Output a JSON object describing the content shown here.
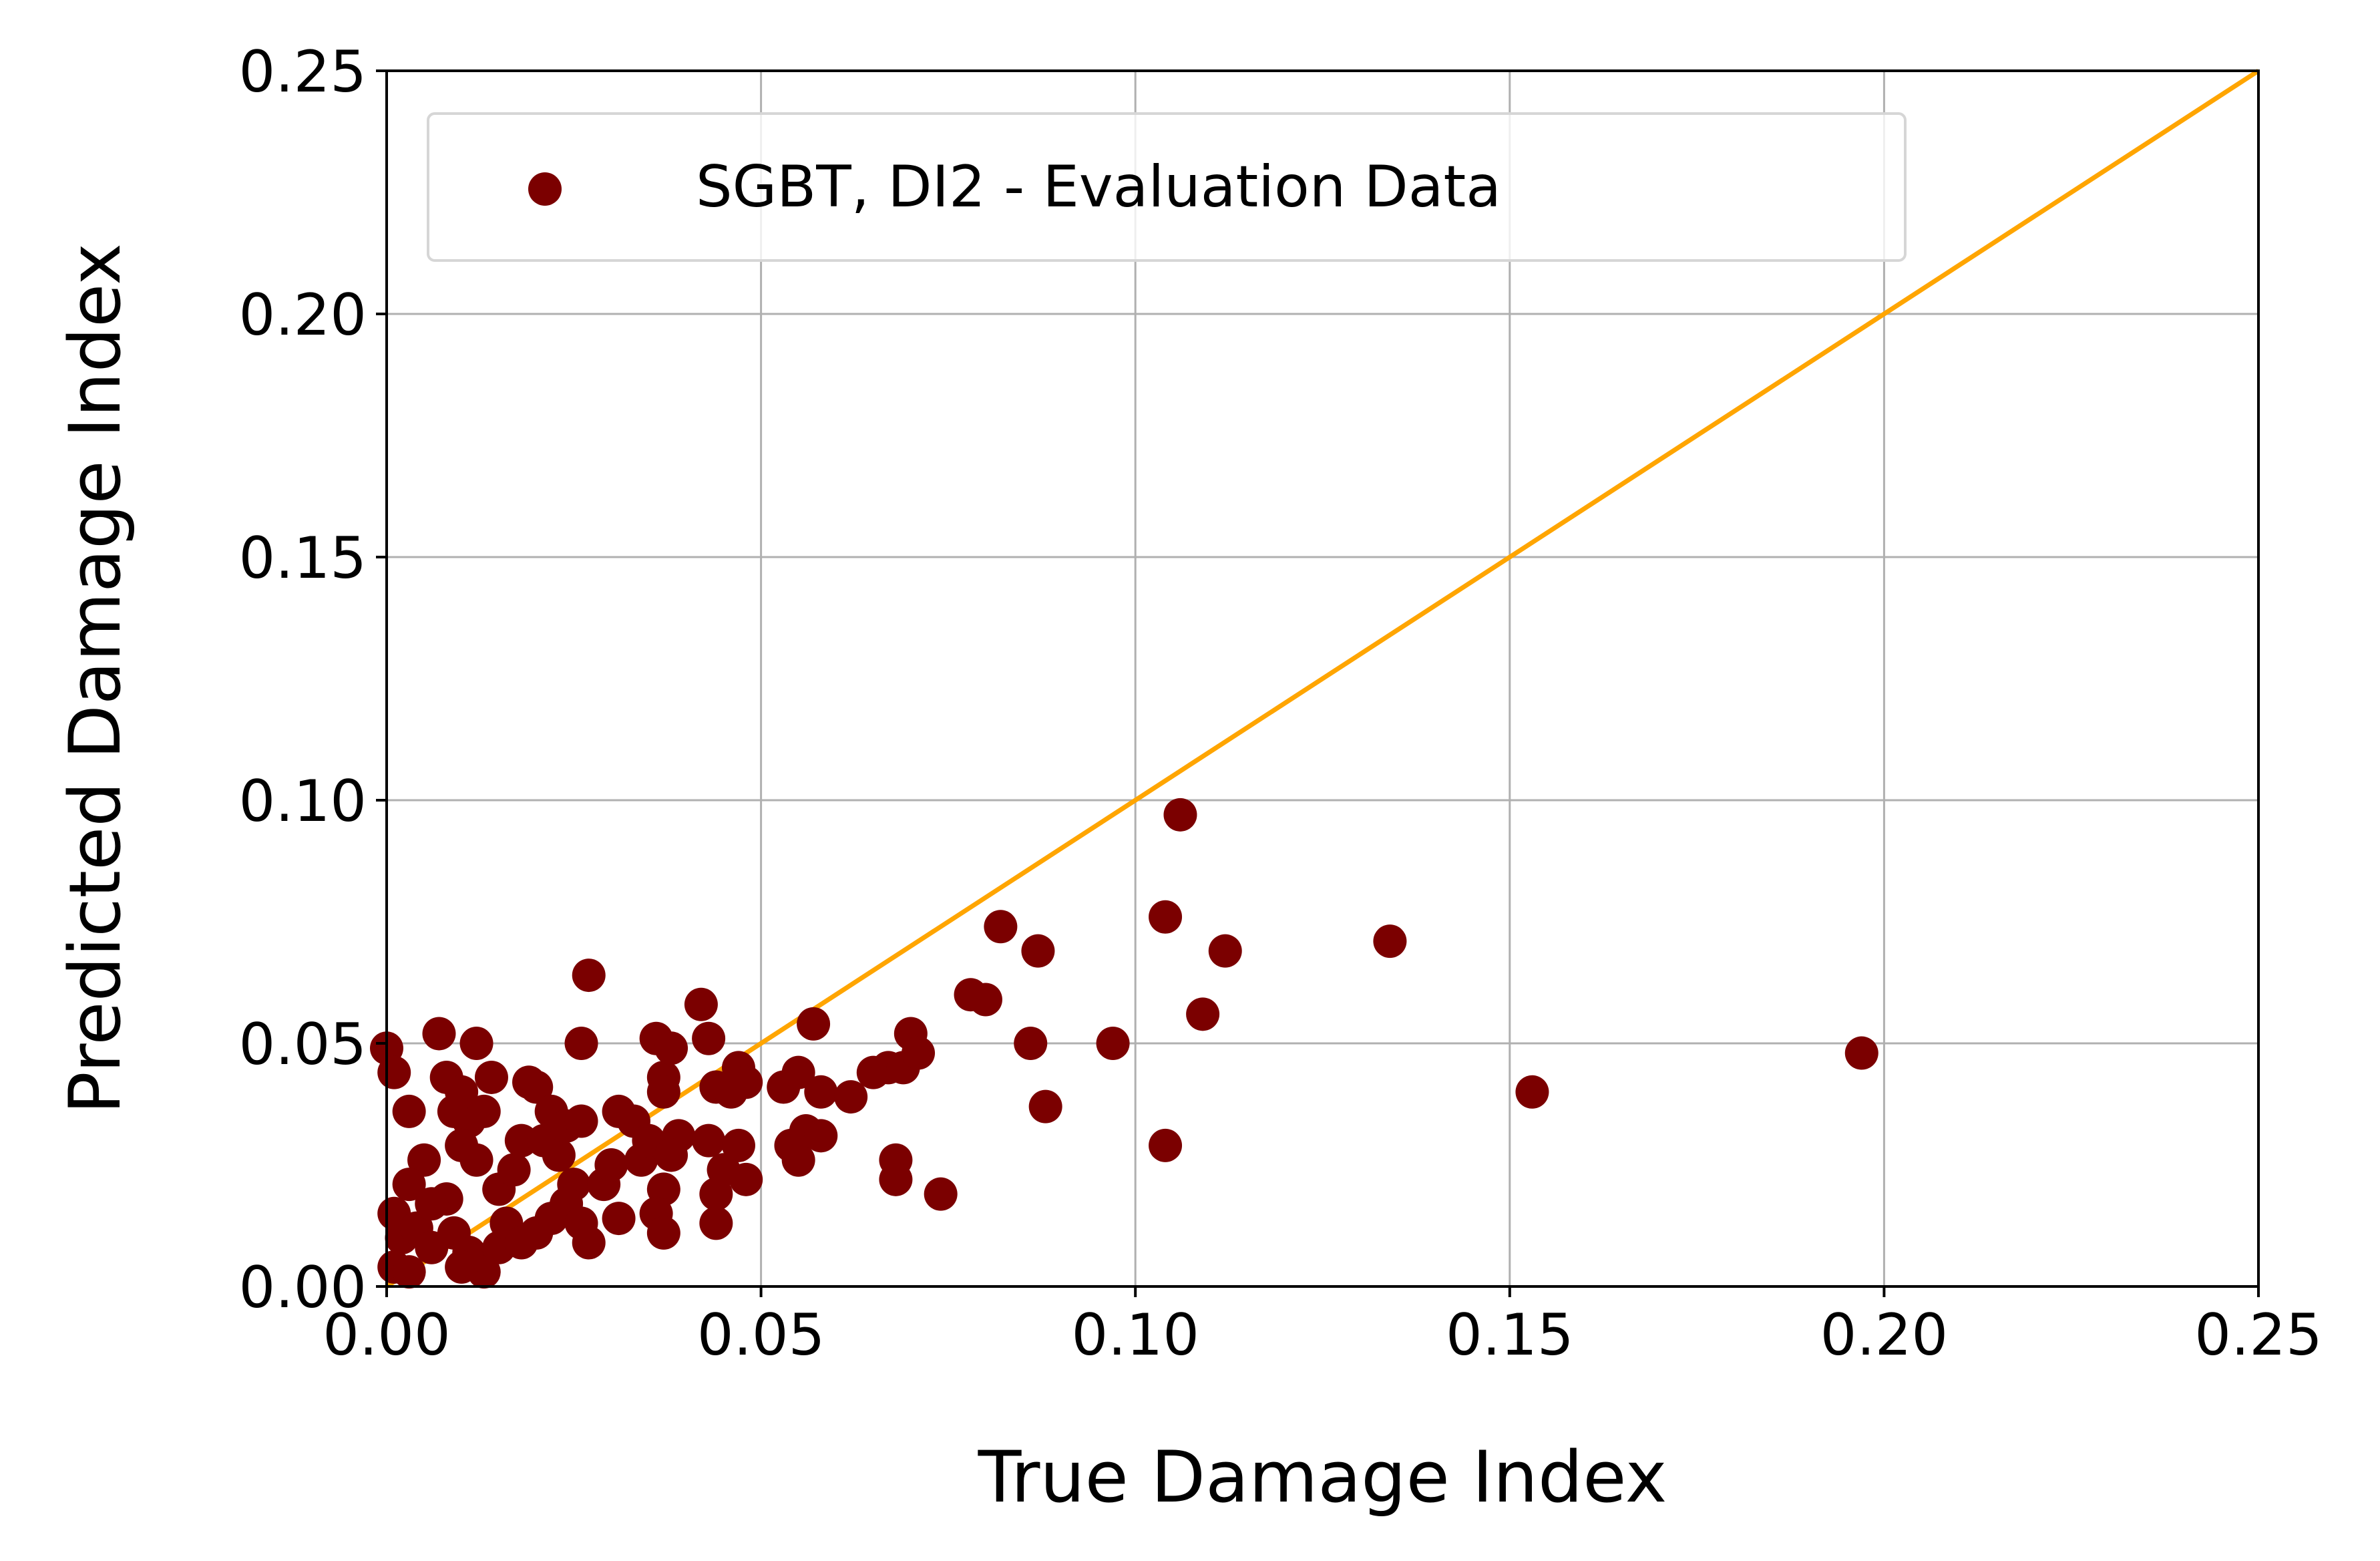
{
  "chart_data": {
    "type": "scatter",
    "xlabel": "True Damage Index",
    "ylabel": "Predicted Damage Index",
    "xlim": [
      0,
      0.25
    ],
    "ylim": [
      0,
      0.25
    ],
    "x_ticks": [
      "0.00",
      "0.05",
      "0.10",
      "0.15",
      "0.20",
      "0.25"
    ],
    "y_ticks": [
      "0.00",
      "0.05",
      "0.10",
      "0.15",
      "0.20",
      "0.25"
    ],
    "grid": true,
    "legend_position": "top-left",
    "reference_line": {
      "x": [
        0,
        0.25
      ],
      "y": [
        0,
        0.25
      ],
      "color": "#ffa500"
    },
    "series": [
      {
        "name": "SGBT, DI2 - Evaluation Data",
        "color": "#7b0000",
        "points": [
          [
            0.0,
            0.049
          ],
          [
            0.001,
            0.044
          ],
          [
            0.003,
            0.036
          ],
          [
            0.005,
            0.026
          ],
          [
            0.003,
            0.021
          ],
          [
            0.001,
            0.015
          ],
          [
            0.002,
            0.01
          ],
          [
            0.004,
            0.012
          ],
          [
            0.006,
            0.008
          ],
          [
            0.001,
            0.004
          ],
          [
            0.003,
            0.003
          ],
          [
            0.007,
            0.052
          ],
          [
            0.008,
            0.043
          ],
          [
            0.01,
            0.04
          ],
          [
            0.011,
            0.034
          ],
          [
            0.009,
            0.036
          ],
          [
            0.012,
            0.05
          ],
          [
            0.014,
            0.043
          ],
          [
            0.013,
            0.036
          ],
          [
            0.01,
            0.029
          ],
          [
            0.012,
            0.026
          ],
          [
            0.008,
            0.018
          ],
          [
            0.006,
            0.017
          ],
          [
            0.009,
            0.011
          ],
          [
            0.011,
            0.007
          ],
          [
            0.013,
            0.003
          ],
          [
            0.01,
            0.004
          ],
          [
            0.015,
            0.008
          ],
          [
            0.016,
            0.013
          ],
          [
            0.015,
            0.02
          ],
          [
            0.017,
            0.024
          ],
          [
            0.018,
            0.03
          ],
          [
            0.019,
            0.042
          ],
          [
            0.02,
            0.041
          ],
          [
            0.022,
            0.036
          ],
          [
            0.021,
            0.03
          ],
          [
            0.023,
            0.027
          ],
          [
            0.024,
            0.033
          ],
          [
            0.026,
            0.034
          ],
          [
            0.025,
            0.021
          ],
          [
            0.024,
            0.017
          ],
          [
            0.022,
            0.014
          ],
          [
            0.02,
            0.011
          ],
          [
            0.018,
            0.009
          ],
          [
            0.026,
            0.05
          ],
          [
            0.027,
            0.064
          ],
          [
            0.026,
            0.013
          ],
          [
            0.027,
            0.009
          ],
          [
            0.029,
            0.021
          ],
          [
            0.03,
            0.025
          ],
          [
            0.031,
            0.014
          ],
          [
            0.031,
            0.036
          ],
          [
            0.033,
            0.034
          ],
          [
            0.034,
            0.026
          ],
          [
            0.035,
            0.03
          ],
          [
            0.036,
            0.051
          ],
          [
            0.037,
            0.043
          ],
          [
            0.038,
            0.049
          ],
          [
            0.037,
            0.04
          ],
          [
            0.039,
            0.031
          ],
          [
            0.038,
            0.027
          ],
          [
            0.037,
            0.02
          ],
          [
            0.036,
            0.015
          ],
          [
            0.037,
            0.011
          ],
          [
            0.042,
            0.058
          ],
          [
            0.043,
            0.051
          ],
          [
            0.044,
            0.041
          ],
          [
            0.043,
            0.03
          ],
          [
            0.045,
            0.024
          ],
          [
            0.044,
            0.019
          ],
          [
            0.044,
            0.013
          ],
          [
            0.046,
            0.04
          ],
          [
            0.047,
            0.045
          ],
          [
            0.048,
            0.042
          ],
          [
            0.047,
            0.029
          ],
          [
            0.048,
            0.022
          ],
          [
            0.053,
            0.041
          ],
          [
            0.055,
            0.044
          ],
          [
            0.054,
            0.029
          ],
          [
            0.055,
            0.026
          ],
          [
            0.056,
            0.032
          ],
          [
            0.058,
            0.031
          ],
          [
            0.057,
            0.054
          ],
          [
            0.058,
            0.04
          ],
          [
            0.062,
            0.039
          ],
          [
            0.065,
            0.044
          ],
          [
            0.067,
            0.045
          ],
          [
            0.068,
            0.026
          ],
          [
            0.068,
            0.022
          ],
          [
            0.069,
            0.045
          ],
          [
            0.07,
            0.052
          ],
          [
            0.071,
            0.048
          ],
          [
            0.074,
            0.019
          ],
          [
            0.078,
            0.06
          ],
          [
            0.08,
            0.059
          ],
          [
            0.082,
            0.074
          ],
          [
            0.086,
            0.05
          ],
          [
            0.087,
            0.069
          ],
          [
            0.088,
            0.037
          ],
          [
            0.097,
            0.05
          ],
          [
            0.104,
            0.076
          ],
          [
            0.104,
            0.029
          ],
          [
            0.106,
            0.097
          ],
          [
            0.109,
            0.056
          ],
          [
            0.112,
            0.069
          ],
          [
            0.134,
            0.071
          ],
          [
            0.153,
            0.04
          ],
          [
            0.197,
            0.048
          ]
        ]
      }
    ]
  }
}
